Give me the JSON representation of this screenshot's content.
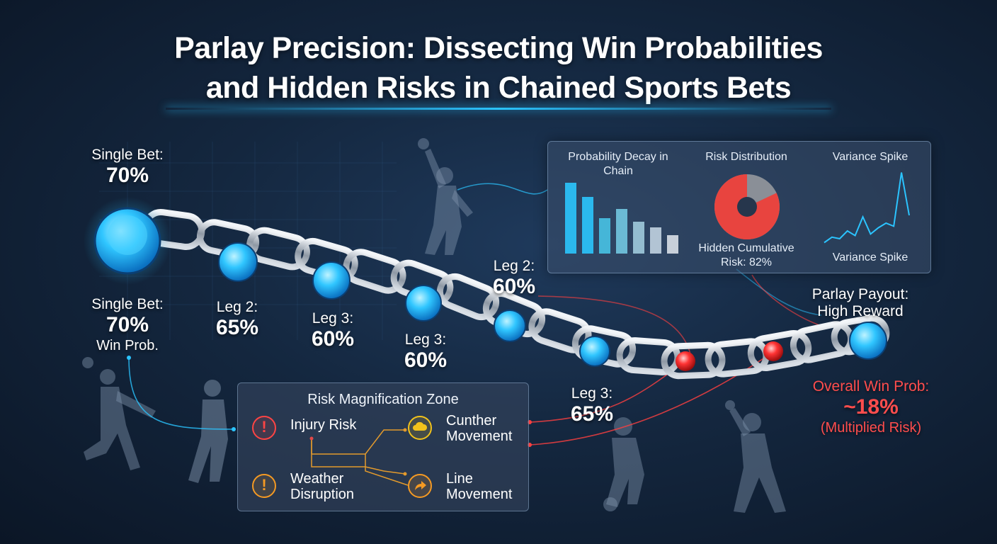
{
  "title_line1": "Parlay Precision: Dissecting Win Probabilities",
  "title_line2": "and Hidden Risks in Chained Sports Bets",
  "labels": {
    "single_bet_top": {
      "caption": "Single Bet:",
      "value": "70%"
    },
    "single_bet_bottom": {
      "caption": "Single Bet:",
      "value": "70%",
      "sub": "Win Prob."
    },
    "leg2_a": {
      "caption": "Leg 2:",
      "value": "65%"
    },
    "leg3_a": {
      "caption": "Leg 3:",
      "value": "60%"
    },
    "leg3_b": {
      "caption": "Leg 3:",
      "value": "60%"
    },
    "leg2_b": {
      "caption": "Leg 2:",
      "value": "60%"
    },
    "leg3_c": {
      "caption": "Leg 3:",
      "value": "65%"
    },
    "payout": {
      "caption": "Parlay Payout:",
      "value": "High Reward"
    },
    "overall": {
      "caption": "Overall Win Prob:",
      "value": "~18%",
      "sub": "(Multiplied Risk)"
    }
  },
  "stats_panel": {
    "decay_title": "Probability Decay in Chain",
    "decay_values": [
      100,
      80,
      50,
      63,
      45,
      37,
      26
    ],
    "risk_dist_title": "Risk Distribution",
    "risk_dist_share": 0.82,
    "risk_caption": "Hidden Cumulative Risk: 82%",
    "variance_title": "Variance Spike",
    "variance_caption": "Variance Spike",
    "variance_values": [
      5,
      12,
      10,
      20,
      14,
      38,
      16,
      24,
      30,
      26,
      95,
      40
    ]
  },
  "risk_zone": {
    "title": "Risk Magnification Zone",
    "items": [
      {
        "label": "Injury Risk",
        "icon": "alert-icon"
      },
      {
        "label": "Cunther Movement",
        "icon": "cloud-icon"
      },
      {
        "label": "Weather Disruption",
        "icon": "alert-icon"
      },
      {
        "label": "Line Movement",
        "icon": "arrow-icon"
      }
    ]
  },
  "colors": {
    "accent": "#2bc4ff",
    "risk_red": "#ff4040",
    "warning_orange": "#f59a23",
    "warning_yellow": "#f2c21b"
  }
}
